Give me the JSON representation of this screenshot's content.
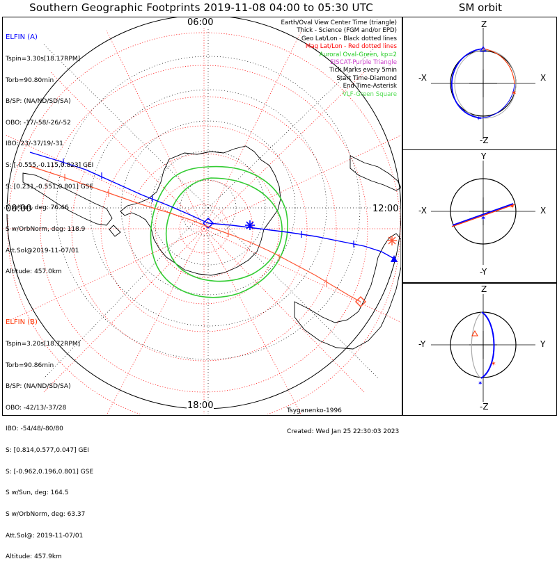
{
  "title": "Southern Geographic Footprints 2019-11-08 04:00 to 05:30 UTC",
  "sm_title": "SM orbit",
  "clock": {
    "top": "06:00",
    "bottom": "18:00",
    "left": "00:00",
    "right": "12:00"
  },
  "legend": [
    {
      "text": "Earth/Oval View Center Time (triangle)",
      "color": "#000000"
    },
    {
      "text": "Thick - Science (FGM and/or EPD)",
      "color": "#000000"
    },
    {
      "text": "Geo Lat/Lon - Black dotted lines",
      "color": "#000000"
    },
    {
      "text": "Mag Lat/Lon - Red dotted lines",
      "color": "#ff0000"
    },
    {
      "text": "Auroral Oval-Green, kp=2",
      "color": "#22cc22"
    },
    {
      "text": "EISCAT-Purple Triangle",
      "color": "#cc44cc"
    },
    {
      "text": "Tick Marks every 5min",
      "color": "#000000"
    },
    {
      "text": "Start Time-Diamond",
      "color": "#000000"
    },
    {
      "text": "End Time-Asterisk",
      "color": "#000000"
    },
    {
      "text": "VLF-Green Square",
      "color": "#55dd55"
    }
  ],
  "elfin_a": {
    "name": "ELFIN (A)",
    "color": "#0000ff",
    "lines": [
      "Tspin=3.30s[18.17RPM]",
      "Torb=90.80min",
      "B/SP: (NA/ND/SD/SA)",
      "OBO: -17/-58/-26/-52",
      "IBO: 23/-37/19/-31",
      "S: [-0.555,-0.115,0.823] GEI",
      "S: [0.231,-0.551,0.801] GSE",
      "S w/Sun, deg: 76.46",
      "S w/OrbNorm, deg: 118.9",
      "Att.Sol@2019-11-07/01",
      "Altitude: 457.0km"
    ]
  },
  "elfin_b": {
    "name": "ELFIN (B)",
    "color": "#ff3300",
    "lines": [
      "Tspin=3.20s[18.72RPM]",
      "Torb=90.86min",
      "B/SP: (NA/ND/SD/SA)",
      "OBO: -42/13/-37/28",
      "IBO: -54/48/-80/80",
      "S: [0.814,0.577,0.047] GEI",
      "S: [-0.962,0.196,0.801] GSE",
      "S w/Sun, deg: 164.5",
      "S w/OrbNorm, deg: 63.37",
      "Att.Sol@: 2019-11-07/01",
      "Altitude: 457.9km"
    ]
  },
  "credit": {
    "author": "Tsyganenko-1996",
    "created": "Created: Wed Jan 25 22:30:03 2023"
  },
  "sm_panels": [
    {
      "id": "xz",
      "top": "Z",
      "bottom": "-Z",
      "left": "-X",
      "right": "X"
    },
    {
      "id": "xy",
      "top": "Y",
      "bottom": "-Y",
      "left": "-X",
      "right": "X"
    },
    {
      "id": "yz",
      "top": "Z",
      "bottom": "-Z",
      "left": "-Y",
      "right": "Y"
    }
  ],
  "colors": {
    "geo_grid": "#000000",
    "mag_grid": "#ff0000",
    "oval": "#22cc22",
    "track_a": "#0000ff",
    "track_b": "#ff5533"
  }
}
